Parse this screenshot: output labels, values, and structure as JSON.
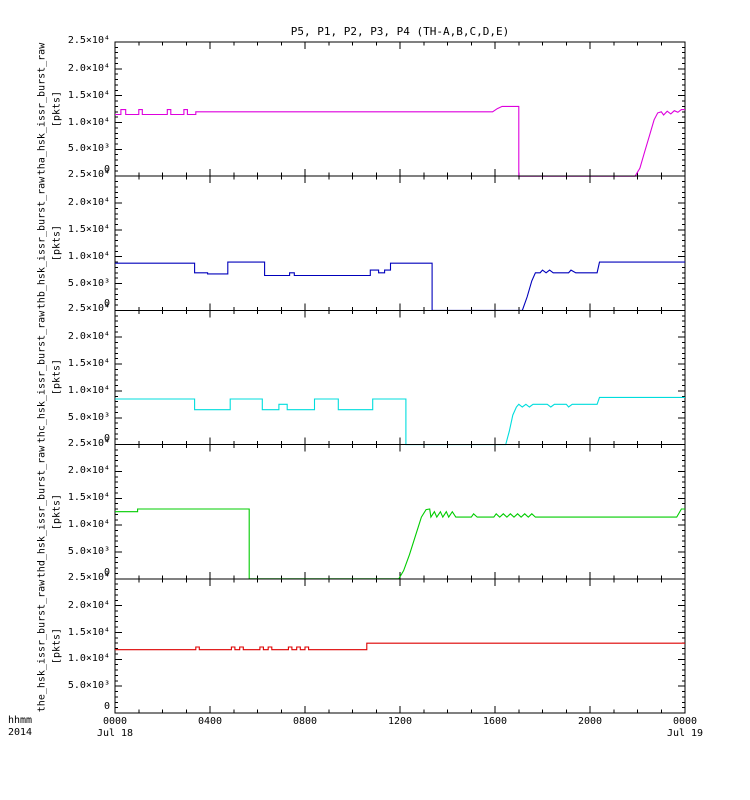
{
  "chart_data": {
    "type": "line",
    "title": "P5, P1, P2, P3, P4 (TH-A,B,C,D,E)",
    "xlabel": "hhmm",
    "ylabel": "[pkts]",
    "x_unit": "hours since Jul 18 2014 00:00",
    "xlim": [
      0,
      24
    ],
    "ylim": [
      0,
      25000
    ],
    "x_minor_step": 1,
    "y_minor_step": 1000,
    "grid": false,
    "legend": "none",
    "axis_corner": {
      "line1": "hhmm",
      "line2": "2014"
    },
    "x_ticks": [
      {
        "h": 0,
        "label": "0000",
        "date": "Jul 18"
      },
      {
        "h": 4,
        "label": "0400"
      },
      {
        "h": 8,
        "label": "0800"
      },
      {
        "h": 12,
        "label": "1200"
      },
      {
        "h": 16,
        "label": "1600"
      },
      {
        "h": 20,
        "label": "2000"
      },
      {
        "h": 24,
        "label": "0000",
        "date": "Jul 19"
      }
    ],
    "y_ticks": [
      {
        "v": 0,
        "label": "0"
      },
      {
        "v": 5000,
        "label": "5.0×10³"
      },
      {
        "v": 10000,
        "label": "1.0×10⁴"
      },
      {
        "v": 15000,
        "label": "1.5×10⁴"
      },
      {
        "v": 20000,
        "label": "2.0×10⁴"
      },
      {
        "v": 25000,
        "label": "2.5×10⁴"
      }
    ],
    "panels": [
      {
        "name": "tha_hsk_issr_burst_raw",
        "unit": "[pkts]",
        "color": "#dd00dd",
        "points": [
          [
            0,
            11500
          ],
          [
            0.25,
            11500
          ],
          [
            0.25,
            12400
          ],
          [
            0.45,
            12400
          ],
          [
            0.45,
            11500
          ],
          [
            1.0,
            11500
          ],
          [
            1.0,
            12400
          ],
          [
            1.15,
            12400
          ],
          [
            1.15,
            11500
          ],
          [
            2.2,
            11500
          ],
          [
            2.2,
            12400
          ],
          [
            2.35,
            12400
          ],
          [
            2.35,
            11500
          ],
          [
            2.9,
            11500
          ],
          [
            2.9,
            12400
          ],
          [
            3.05,
            12400
          ],
          [
            3.05,
            11500
          ],
          [
            3.4,
            11500
          ],
          [
            3.4,
            12000
          ],
          [
            15.9,
            12000
          ],
          [
            16.1,
            12600
          ],
          [
            16.3,
            13000
          ],
          [
            17.0,
            13000
          ],
          [
            17.0,
            0
          ],
          [
            21.9,
            0
          ],
          [
            22.1,
            1500
          ],
          [
            22.3,
            4500
          ],
          [
            22.5,
            7500
          ],
          [
            22.7,
            10500
          ],
          [
            22.85,
            11800
          ],
          [
            23.0,
            12000
          ],
          [
            23.1,
            11400
          ],
          [
            23.25,
            12100
          ],
          [
            23.4,
            11600
          ],
          [
            23.55,
            12200
          ],
          [
            23.7,
            11900
          ],
          [
            23.85,
            12400
          ],
          [
            24,
            12400
          ]
        ]
      },
      {
        "name": "thb_hsk_issr_burst_raw",
        "unit": "[pkts]",
        "color": "#0000bb",
        "points": [
          [
            0,
            8800
          ],
          [
            3.35,
            8800
          ],
          [
            3.35,
            7000
          ],
          [
            3.9,
            7000
          ],
          [
            3.9,
            6800
          ],
          [
            4.75,
            6800
          ],
          [
            4.75,
            9000
          ],
          [
            6.3,
            9000
          ],
          [
            6.3,
            6500
          ],
          [
            7.35,
            6500
          ],
          [
            7.35,
            7000
          ],
          [
            7.55,
            7000
          ],
          [
            7.55,
            6500
          ],
          [
            10.75,
            6500
          ],
          [
            10.75,
            7500
          ],
          [
            11.1,
            7500
          ],
          [
            11.1,
            7000
          ],
          [
            11.35,
            7000
          ],
          [
            11.35,
            7500
          ],
          [
            11.6,
            7500
          ],
          [
            11.6,
            8800
          ],
          [
            13.35,
            8800
          ],
          [
            13.35,
            0
          ],
          [
            17.15,
            0
          ],
          [
            17.35,
            2500
          ],
          [
            17.55,
            5500
          ],
          [
            17.7,
            7000
          ],
          [
            17.9,
            7000
          ],
          [
            18.0,
            7500
          ],
          [
            18.15,
            7000
          ],
          [
            18.3,
            7500
          ],
          [
            18.45,
            7000
          ],
          [
            19.1,
            7000
          ],
          [
            19.2,
            7500
          ],
          [
            19.4,
            7000
          ],
          [
            20.3,
            7000
          ],
          [
            20.4,
            9000
          ],
          [
            24,
            9000
          ]
        ]
      },
      {
        "name": "thc_hsk_issr_burst_raw",
        "unit": "[pkts]",
        "color": "#00dddd",
        "points": [
          [
            0,
            8500
          ],
          [
            3.35,
            8500
          ],
          [
            3.35,
            6500
          ],
          [
            4.85,
            6500
          ],
          [
            4.85,
            8500
          ],
          [
            6.2,
            8500
          ],
          [
            6.2,
            6500
          ],
          [
            6.9,
            6500
          ],
          [
            6.9,
            7500
          ],
          [
            7.25,
            7500
          ],
          [
            7.25,
            6500
          ],
          [
            8.4,
            6500
          ],
          [
            8.4,
            8500
          ],
          [
            9.4,
            8500
          ],
          [
            9.4,
            6500
          ],
          [
            10.85,
            6500
          ],
          [
            10.85,
            8500
          ],
          [
            12.25,
            8500
          ],
          [
            12.25,
            0
          ],
          [
            16.45,
            0
          ],
          [
            16.6,
            2500
          ],
          [
            16.75,
            5500
          ],
          [
            16.9,
            7000
          ],
          [
            17.0,
            7500
          ],
          [
            17.15,
            7000
          ],
          [
            17.3,
            7500
          ],
          [
            17.45,
            7000
          ],
          [
            17.6,
            7500
          ],
          [
            18.2,
            7500
          ],
          [
            18.35,
            7000
          ],
          [
            18.5,
            7500
          ],
          [
            19.0,
            7500
          ],
          [
            19.1,
            7000
          ],
          [
            19.25,
            7500
          ],
          [
            20.3,
            7500
          ],
          [
            20.4,
            8800
          ],
          [
            24,
            8800
          ]
        ]
      },
      {
        "name": "thd_hsk_issr_burst_raw",
        "unit": "[pkts]",
        "color": "#00cc00",
        "points": [
          [
            0,
            12500
          ],
          [
            0.95,
            12500
          ],
          [
            0.95,
            13000
          ],
          [
            5.65,
            13000
          ],
          [
            5.65,
            0
          ],
          [
            11.95,
            0
          ],
          [
            12.15,
            1500
          ],
          [
            12.4,
            4500
          ],
          [
            12.65,
            8000
          ],
          [
            12.9,
            11500
          ],
          [
            13.1,
            12900
          ],
          [
            13.25,
            13000
          ],
          [
            13.3,
            11500
          ],
          [
            13.45,
            12500
          ],
          [
            13.55,
            11500
          ],
          [
            13.7,
            12500
          ],
          [
            13.8,
            11500
          ],
          [
            13.95,
            12500
          ],
          [
            14.05,
            11500
          ],
          [
            14.2,
            12500
          ],
          [
            14.35,
            11500
          ],
          [
            15.0,
            11500
          ],
          [
            15.1,
            12100
          ],
          [
            15.25,
            11500
          ],
          [
            15.95,
            11500
          ],
          [
            16.05,
            12100
          ],
          [
            16.2,
            11500
          ],
          [
            16.35,
            12100
          ],
          [
            16.5,
            11500
          ],
          [
            16.65,
            12100
          ],
          [
            16.8,
            11500
          ],
          [
            16.95,
            12100
          ],
          [
            17.1,
            11500
          ],
          [
            17.25,
            12100
          ],
          [
            17.4,
            11500
          ],
          [
            17.55,
            12100
          ],
          [
            17.7,
            11500
          ],
          [
            23.65,
            11500
          ],
          [
            23.85,
            13000
          ],
          [
            24,
            13000
          ]
        ]
      },
      {
        "name": "the_hsk_issr_burst_raw",
        "unit": "[pkts]",
        "color": "#dd0000",
        "points": [
          [
            0,
            11800
          ],
          [
            3.4,
            11800
          ],
          [
            3.4,
            12300
          ],
          [
            3.55,
            12300
          ],
          [
            3.55,
            11800
          ],
          [
            4.9,
            11800
          ],
          [
            4.9,
            12300
          ],
          [
            5.05,
            12300
          ],
          [
            5.05,
            11800
          ],
          [
            5.25,
            11800
          ],
          [
            5.25,
            12300
          ],
          [
            5.4,
            12300
          ],
          [
            5.4,
            11800
          ],
          [
            6.1,
            11800
          ],
          [
            6.1,
            12300
          ],
          [
            6.25,
            12300
          ],
          [
            6.25,
            11800
          ],
          [
            6.45,
            11800
          ],
          [
            6.45,
            12300
          ],
          [
            6.6,
            12300
          ],
          [
            6.6,
            11800
          ],
          [
            7.3,
            11800
          ],
          [
            7.3,
            12300
          ],
          [
            7.45,
            12300
          ],
          [
            7.45,
            11800
          ],
          [
            7.65,
            11800
          ],
          [
            7.65,
            12300
          ],
          [
            7.8,
            12300
          ],
          [
            7.8,
            11800
          ],
          [
            8.0,
            11800
          ],
          [
            8.0,
            12300
          ],
          [
            8.15,
            12300
          ],
          [
            8.15,
            11800
          ],
          [
            10.6,
            11800
          ],
          [
            10.6,
            13000
          ],
          [
            24,
            13000
          ]
        ]
      }
    ]
  }
}
